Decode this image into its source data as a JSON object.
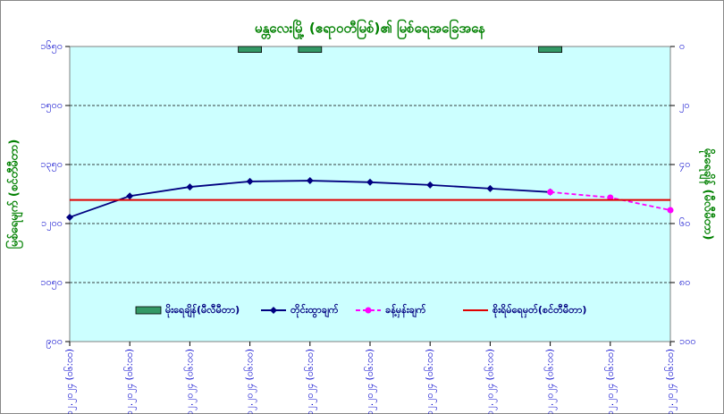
{
  "chart_data": {
    "type": "line",
    "title": "မန္တလေးမြို့ (ဧရာဝတီမြစ်)၏ မြစ်ရေအခြေအနေ",
    "ylabel": "မြစ်ရေမျက် (စင်တီမီတာ)",
    "y2label": "မိုးရေချိန် (မီလီမီတာ)",
    "categories": [
      "၈.၁၂.၂၀၂၄ (၀၆:၀၀)",
      "၉.၁၂.၂၀၂၄ (၀၆:၀၀)",
      "၁၀.၁၂.၂၀၂၄ (၀၆:၀၀)",
      "၁၁.၁၂.၂၀၂၄ (၀၆:၀၀)",
      "၁၂.၁၂.၂၀၂၄ (၀၆:၀၀)",
      "၁၃.၁၂.၂၀၂၄ (၀၆:၀၀)",
      "၁၄.၁၂.၂၀၂၄ (၀၆:၀၀)",
      "၁၅.၁၂.၂၀၂၄ (၀၆:၀၀)",
      "၁၆.၁၂.၂၀၂၄ (၀၆:၀၀)",
      "၁၇.၁၂.၂၀၂၄ (၀၆:၀၀)",
      "၁၈.၁၂.၂၀၂၄ (၀၆:၀၀)"
    ],
    "series": [
      {
        "name": "မိုးရေချိန်(မီလီမီတာ)",
        "type": "bar",
        "axis": "y2",
        "color": "#339966",
        "values": [
          0,
          0,
          0,
          2,
          2,
          0,
          0,
          0,
          2,
          0,
          0
        ]
      },
      {
        "name": "တိုင်းထွာချက်",
        "type": "line",
        "marker": "diamond",
        "color": "#000080",
        "values": [
          1216,
          1270,
          1293,
          1307,
          1309,
          1305,
          1298,
          1289,
          1280,
          null,
          null
        ]
      },
      {
        "name": "ခန့်မှန်းချက်",
        "type": "line",
        "marker": "circle",
        "dashed": true,
        "color": "#ff00ff",
        "values": [
          null,
          null,
          null,
          null,
          null,
          null,
          null,
          null,
          1280,
          1266,
          1234
        ]
      },
      {
        "name": "စိုးရိမ်ရေမှတ်(စင်တီမီတာ)",
        "type": "line",
        "color": "#e00000",
        "values": [
          1260,
          1260,
          1260,
          1260,
          1260,
          1260,
          1260,
          1260,
          1260,
          1260,
          1260
        ]
      }
    ],
    "ylim": [
      900,
      1650
    ],
    "yticks": [
      {
        "value": 900,
        "label": "၉၀၀"
      },
      {
        "value": 1050,
        "label": "၁၀၅၀"
      },
      {
        "value": 1200,
        "label": "၁၂၀၀"
      },
      {
        "value": 1350,
        "label": "၁၃၅၀"
      },
      {
        "value": 1500,
        "label": "၁၅၀၀"
      },
      {
        "value": 1650,
        "label": "၁၆၅၀"
      }
    ],
    "y2lim": [
      0,
      100
    ],
    "y2_inverted": true,
    "y2ticks": [
      {
        "value": 0,
        "label": "၀"
      },
      {
        "value": 20,
        "label": "၂၀"
      },
      {
        "value": 40,
        "label": "၄၀"
      },
      {
        "value": 60,
        "label": "၆၀"
      },
      {
        "value": 80,
        "label": "၈၀"
      },
      {
        "value": 100,
        "label": "၁၀၀"
      }
    ],
    "grid": true,
    "legend": "bottom"
  }
}
